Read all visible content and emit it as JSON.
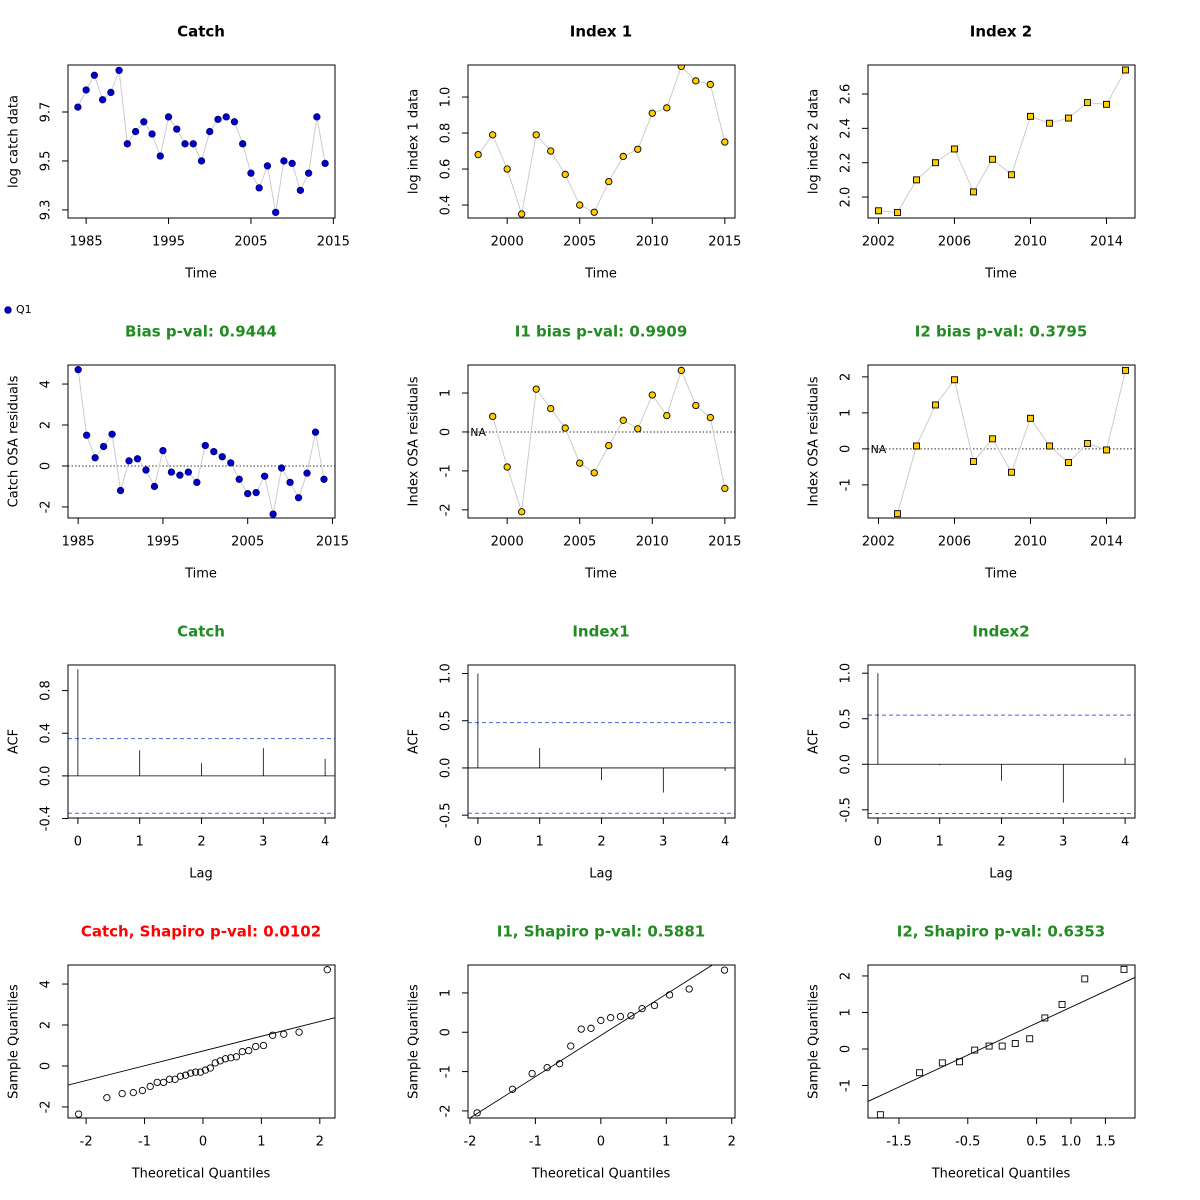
{
  "chart_data": [
    {
      "type": "line",
      "title": "Catch",
      "title_color": "#000000",
      "xlabel": "Time",
      "ylabel": "log catch data",
      "x": [
        1984,
        1985,
        1986,
        1987,
        1988,
        1989,
        1990,
        1991,
        1992,
        1993,
        1994,
        1995,
        1996,
        1997,
        1998,
        1999,
        2000,
        2001,
        2002,
        2003,
        2004,
        2005,
        2006,
        2007,
        2008,
        2009,
        2010,
        2011,
        2012,
        2013,
        2014
      ],
      "series": [
        {
          "name": "Q1",
          "color": "#0000cc",
          "edge": "#00007a",
          "marker": "circle",
          "values": [
            9.72,
            9.79,
            9.85,
            9.75,
            9.78,
            9.87,
            9.57,
            9.62,
            9.66,
            9.61,
            9.52,
            9.68,
            9.63,
            9.57,
            9.57,
            9.5,
            9.62,
            9.67,
            9.68,
            9.66,
            9.57,
            9.45,
            9.39,
            9.48,
            9.29,
            9.5,
            9.49,
            9.38,
            9.45,
            9.68,
            9.49
          ]
        }
      ],
      "line_color": "#cccccc",
      "legend": "below-left",
      "xlim": [
        1982.8,
        2015.2
      ],
      "ylim": [
        9.267,
        9.892
      ],
      "xticks": [
        1985,
        1995,
        2005,
        2015
      ],
      "yticks": [
        9.3,
        9.5,
        9.7
      ]
    },
    {
      "type": "line",
      "title": "Index 1",
      "title_color": "#000000",
      "xlabel": "Time",
      "ylabel": "log index 1 data",
      "x": [
        1998,
        1999,
        2000,
        2001,
        2002,
        2003,
        2004,
        2005,
        2006,
        2007,
        2008,
        2009,
        2010,
        2011,
        2012,
        2013,
        2014,
        2015
      ],
      "series": [
        {
          "color": "#ffcc00",
          "edge": "#000000",
          "marker": "circle",
          "values": [
            0.68,
            0.79,
            0.6,
            0.35,
            0.79,
            0.7,
            0.57,
            0.4,
            0.36,
            0.53,
            0.67,
            0.71,
            0.91,
            0.94,
            1.17,
            1.09,
            1.07,
            0.75
          ]
        }
      ],
      "line_color": "#cccccc",
      "xlim": [
        1997.3,
        2015.7
      ],
      "ylim": [
        0.328,
        1.178
      ],
      "xticks": [
        2000,
        2005,
        2010,
        2015
      ],
      "yticks": [
        0.4,
        0.6,
        0.8,
        {
          "value": 1,
          "label": "1.0"
        }
      ]
    },
    {
      "type": "line",
      "title": "Index 2",
      "title_color": "#000000",
      "xlabel": "Time",
      "ylabel": "log index 2 data",
      "x": [
        2002,
        2003,
        2004,
        2005,
        2006,
        2007,
        2008,
        2009,
        2010,
        2011,
        2012,
        2013,
        2014,
        2015
      ],
      "series": [
        {
          "color": "#ffcc00",
          "edge": "#000000",
          "marker": "square",
          "values": [
            1.92,
            1.91,
            2.1,
            2.2,
            2.28,
            2.03,
            2.22,
            2.13,
            2.47,
            2.43,
            2.46,
            2.55,
            2.54,
            2.74
          ]
        }
      ],
      "line_color": "#cccccc",
      "xlim": [
        2001.45,
        2015.5
      ],
      "ylim": [
        1.878,
        2.769
      ],
      "xticks": [
        2002,
        2006,
        2010,
        2014
      ],
      "yticks": [
        {
          "value": 2,
          "label": "2.0"
        },
        2.2,
        2.4,
        2.6
      ]
    },
    {
      "type": "line",
      "title": "Bias p-val: 0.9444",
      "title_color": "#228b22",
      "xlabel": "Time",
      "ylabel": "Catch OSA residuals",
      "x": [
        1985,
        1986,
        1987,
        1988,
        1989,
        1990,
        1991,
        1992,
        1993,
        1994,
        1995,
        1996,
        1997,
        1998,
        1999,
        2000,
        2001,
        2002,
        2003,
        2004,
        2005,
        2006,
        2007,
        2008,
        2009,
        2010,
        2011,
        2012,
        2013,
        2014
      ],
      "series": [
        {
          "color": "#0000cc",
          "edge": "#00007a",
          "marker": "circle",
          "values": [
            4.7,
            1.5,
            0.4,
            0.95,
            1.55,
            -1.2,
            0.25,
            0.35,
            -0.2,
            -1.0,
            0.75,
            -0.3,
            -0.45,
            -0.3,
            -0.8,
            1.0,
            0.7,
            0.45,
            0.15,
            -0.65,
            -1.35,
            -1.3,
            -0.5,
            -2.35,
            -0.1,
            -0.8,
            -1.55,
            -0.35,
            1.65,
            -0.65
          ]
        }
      ],
      "line_color": "#cccccc",
      "hline": 0,
      "xlim": [
        1983.8,
        2015.3
      ],
      "ylim": [
        -2.54,
        4.93
      ],
      "xticks": [
        1985,
        1995,
        2005,
        2015
      ],
      "yticks": [
        -2,
        0,
        2,
        4
      ]
    },
    {
      "type": "line",
      "title": "I1 bias p-val: 0.9909",
      "title_color": "#228b22",
      "xlabel": "Time",
      "ylabel": "Index OSA residuals",
      "x": [
        1998,
        1999,
        2000,
        2001,
        2002,
        2003,
        2004,
        2005,
        2006,
        2007,
        2008,
        2009,
        2010,
        2011,
        2012,
        2013,
        2014,
        2015
      ],
      "series": [
        {
          "color": "#ffcc00",
          "edge": "#000000",
          "marker": "circle",
          "values": [
            null,
            0.4,
            -0.9,
            -2.05,
            1.1,
            0.6,
            0.1,
            -0.8,
            -1.05,
            -0.35,
            0.3,
            0.08,
            0.95,
            0.42,
            1.58,
            0.68,
            0.37,
            -1.45
          ]
        }
      ],
      "line_color": "#cccccc",
      "hline": 0,
      "na_label": "NA",
      "xlim": [
        1997.3,
        2015.7
      ],
      "ylim": [
        -2.21,
        1.72
      ],
      "xticks": [
        2000,
        2005,
        2010,
        2015
      ],
      "yticks": [
        -2,
        -1,
        0,
        1
      ]
    },
    {
      "type": "line",
      "title": "I2 bias p-val: 0.3795",
      "title_color": "#228b22",
      "xlabel": "Time",
      "ylabel": "Index OSA residuals",
      "x": [
        2002,
        2003,
        2004,
        2005,
        2006,
        2007,
        2008,
        2009,
        2010,
        2011,
        2012,
        2013,
        2014,
        2015
      ],
      "series": [
        {
          "color": "#ffcc00",
          "edge": "#000000",
          "marker": "square",
          "values": [
            null,
            -1.8,
            0.08,
            1.22,
            1.92,
            -0.35,
            0.28,
            -0.65,
            0.85,
            0.08,
            -0.38,
            0.15,
            -0.03,
            2.18
          ]
        }
      ],
      "line_color": "#cccccc",
      "hline": 0,
      "na_label": "NA",
      "xlim": [
        2001.45,
        2015.5
      ],
      "ylim": [
        -1.92,
        2.33
      ],
      "xticks": [
        2002,
        2006,
        2010,
        2014
      ],
      "yticks": [
        -1,
        0,
        1,
        2
      ]
    },
    {
      "type": "stem",
      "title": "Catch",
      "title_color": "#228b22",
      "xlabel": "Lag",
      "ylabel": "ACF",
      "x": [
        0,
        1,
        2,
        3,
        4
      ],
      "values": [
        1.0,
        0.24,
        0.12,
        0.26,
        0.16
      ],
      "ci": 0.35,
      "ci_color": "#4a62d8",
      "xlim": [
        -0.16,
        4.16
      ],
      "ylim": [
        -0.395,
        1.04
      ],
      "xticks": [
        0,
        1,
        2,
        3,
        4
      ],
      "yticks": [
        -0.4,
        {
          "value": 0,
          "label": "0.0"
        },
        0.4,
        0.8
      ]
    },
    {
      "type": "stem",
      "title": "Index1",
      "title_color": "#228b22",
      "xlabel": "Lag",
      "ylabel": "ACF",
      "x": [
        0,
        1,
        2,
        3,
        4
      ],
      "values": [
        1.0,
        0.21,
        -0.13,
        -0.26,
        -0.03
      ],
      "ci": 0.48,
      "ci_color": "#4a62d8",
      "xlim": [
        -0.16,
        4.16
      ],
      "ylim": [
        -0.53,
        1.09
      ],
      "xticks": [
        0,
        1,
        2,
        3,
        4
      ],
      "yticks": [
        -0.5,
        {
          "value": 0,
          "label": "0.0"
        },
        0.5,
        {
          "value": 1,
          "label": "1.0"
        }
      ]
    },
    {
      "type": "stem",
      "title": "Index2",
      "title_color": "#228b22",
      "xlabel": "Lag",
      "ylabel": "ACF",
      "x": [
        0,
        1,
        2,
        3,
        4
      ],
      "values": [
        1.0,
        -0.01,
        -0.18,
        -0.42,
        0.07
      ],
      "ci": 0.54,
      "ci_color": "#4a62d8",
      "xlim": [
        -0.16,
        4.16
      ],
      "ylim": [
        -0.59,
        1.09
      ],
      "xticks": [
        0,
        1,
        2,
        3,
        4
      ],
      "yticks": [
        -0.5,
        {
          "value": 0,
          "label": "0.0"
        },
        0.5,
        {
          "value": 1,
          "label": "1.0"
        }
      ]
    },
    {
      "type": "scatter",
      "title": "Catch, Shapiro p-val: 0.0102",
      "title_color": "#ff0000",
      "xlabel": "Theoretical Quantiles",
      "ylabel": "Sample Quantiles",
      "x": [
        -2.128,
        -1.645,
        -1.383,
        -1.192,
        -1.036,
        -0.903,
        -0.783,
        -0.674,
        -0.573,
        -0.477,
        -0.385,
        -0.297,
        -0.21,
        -0.126,
        -0.042,
        0.042,
        0.126,
        0.21,
        0.297,
        0.385,
        0.477,
        0.573,
        0.674,
        0.783,
        0.903,
        1.036,
        1.192,
        1.383,
        1.645,
        2.128
      ],
      "series": [
        {
          "color": "#000000",
          "marker": "circle",
          "values": [
            -2.35,
            -1.55,
            -1.35,
            -1.3,
            -1.2,
            -1.0,
            -0.8,
            -0.8,
            -0.65,
            -0.65,
            -0.5,
            -0.45,
            -0.35,
            -0.3,
            -0.3,
            -0.2,
            -0.1,
            0.15,
            0.25,
            0.35,
            0.4,
            0.45,
            0.7,
            0.75,
            0.95,
            1.0,
            1.5,
            1.55,
            1.65,
            4.7
          ]
        }
      ],
      "fit": {
        "intercept": 0.73,
        "slope": 0.72
      },
      "xlim": [
        -2.31,
        2.26
      ],
      "ylim": [
        -2.54,
        4.93
      ],
      "xticks": [
        -2,
        -1,
        0,
        1,
        2
      ],
      "yticks": [
        -2,
        0,
        2,
        4
      ]
    },
    {
      "type": "scatter",
      "title": "I1, Shapiro p-val: 0.5881",
      "title_color": "#228b22",
      "xlabel": "Theoretical Quantiles",
      "ylabel": "Sample Quantiles",
      "x": [
        -1.89,
        -1.35,
        -1.05,
        -0.82,
        -0.63,
        -0.46,
        -0.3,
        -0.15,
        0,
        0.15,
        0.3,
        0.46,
        0.63,
        0.82,
        1.05,
        1.35,
        1.89
      ],
      "series": [
        {
          "color": "#000000",
          "marker": "circle",
          "values": [
            -2.05,
            -1.45,
            -1.05,
            -0.9,
            -0.8,
            -0.35,
            0.08,
            0.1,
            0.3,
            0.37,
            0.4,
            0.42,
            0.6,
            0.68,
            0.95,
            1.1,
            1.58
          ]
        }
      ],
      "fit": {
        "intercept": -0.08,
        "slope": 1.05
      },
      "xlim": [
        -2.03,
        2.05
      ],
      "ylim": [
        -2.18,
        1.71
      ],
      "xticks": [
        -2,
        -1,
        0,
        1,
        2
      ],
      "yticks": [
        -2,
        -1,
        0,
        1
      ]
    },
    {
      "type": "scatter",
      "title": "I2, Shapiro p-val: 0.6353",
      "title_color": "#228b22",
      "xlabel": "Theoretical Quantiles",
      "ylabel": "Sample Quantiles",
      "x": [
        -1.77,
        -1.2,
        -0.87,
        -0.62,
        -0.4,
        -0.19,
        0,
        0.19,
        0.4,
        0.62,
        0.87,
        1.2,
        1.77
      ],
      "series": [
        {
          "color": "#000000",
          "marker": "square",
          "values": [
            -1.8,
            -0.65,
            -0.38,
            -0.35,
            -0.03,
            0.08,
            0.08,
            0.15,
            0.28,
            0.85,
            1.22,
            1.92,
            2.18
          ]
        }
      ],
      "fit": {
        "intercept": 0.27,
        "slope": 0.875
      },
      "xlim": [
        -1.95,
        1.93
      ],
      "ylim": [
        -1.89,
        2.3
      ],
      "xticks": [
        -1.5,
        -0.5,
        0.5,
        {
          "value": 1,
          "label": "1.0"
        },
        1.5
      ],
      "yticks": [
        -1,
        0,
        1,
        2
      ]
    }
  ]
}
